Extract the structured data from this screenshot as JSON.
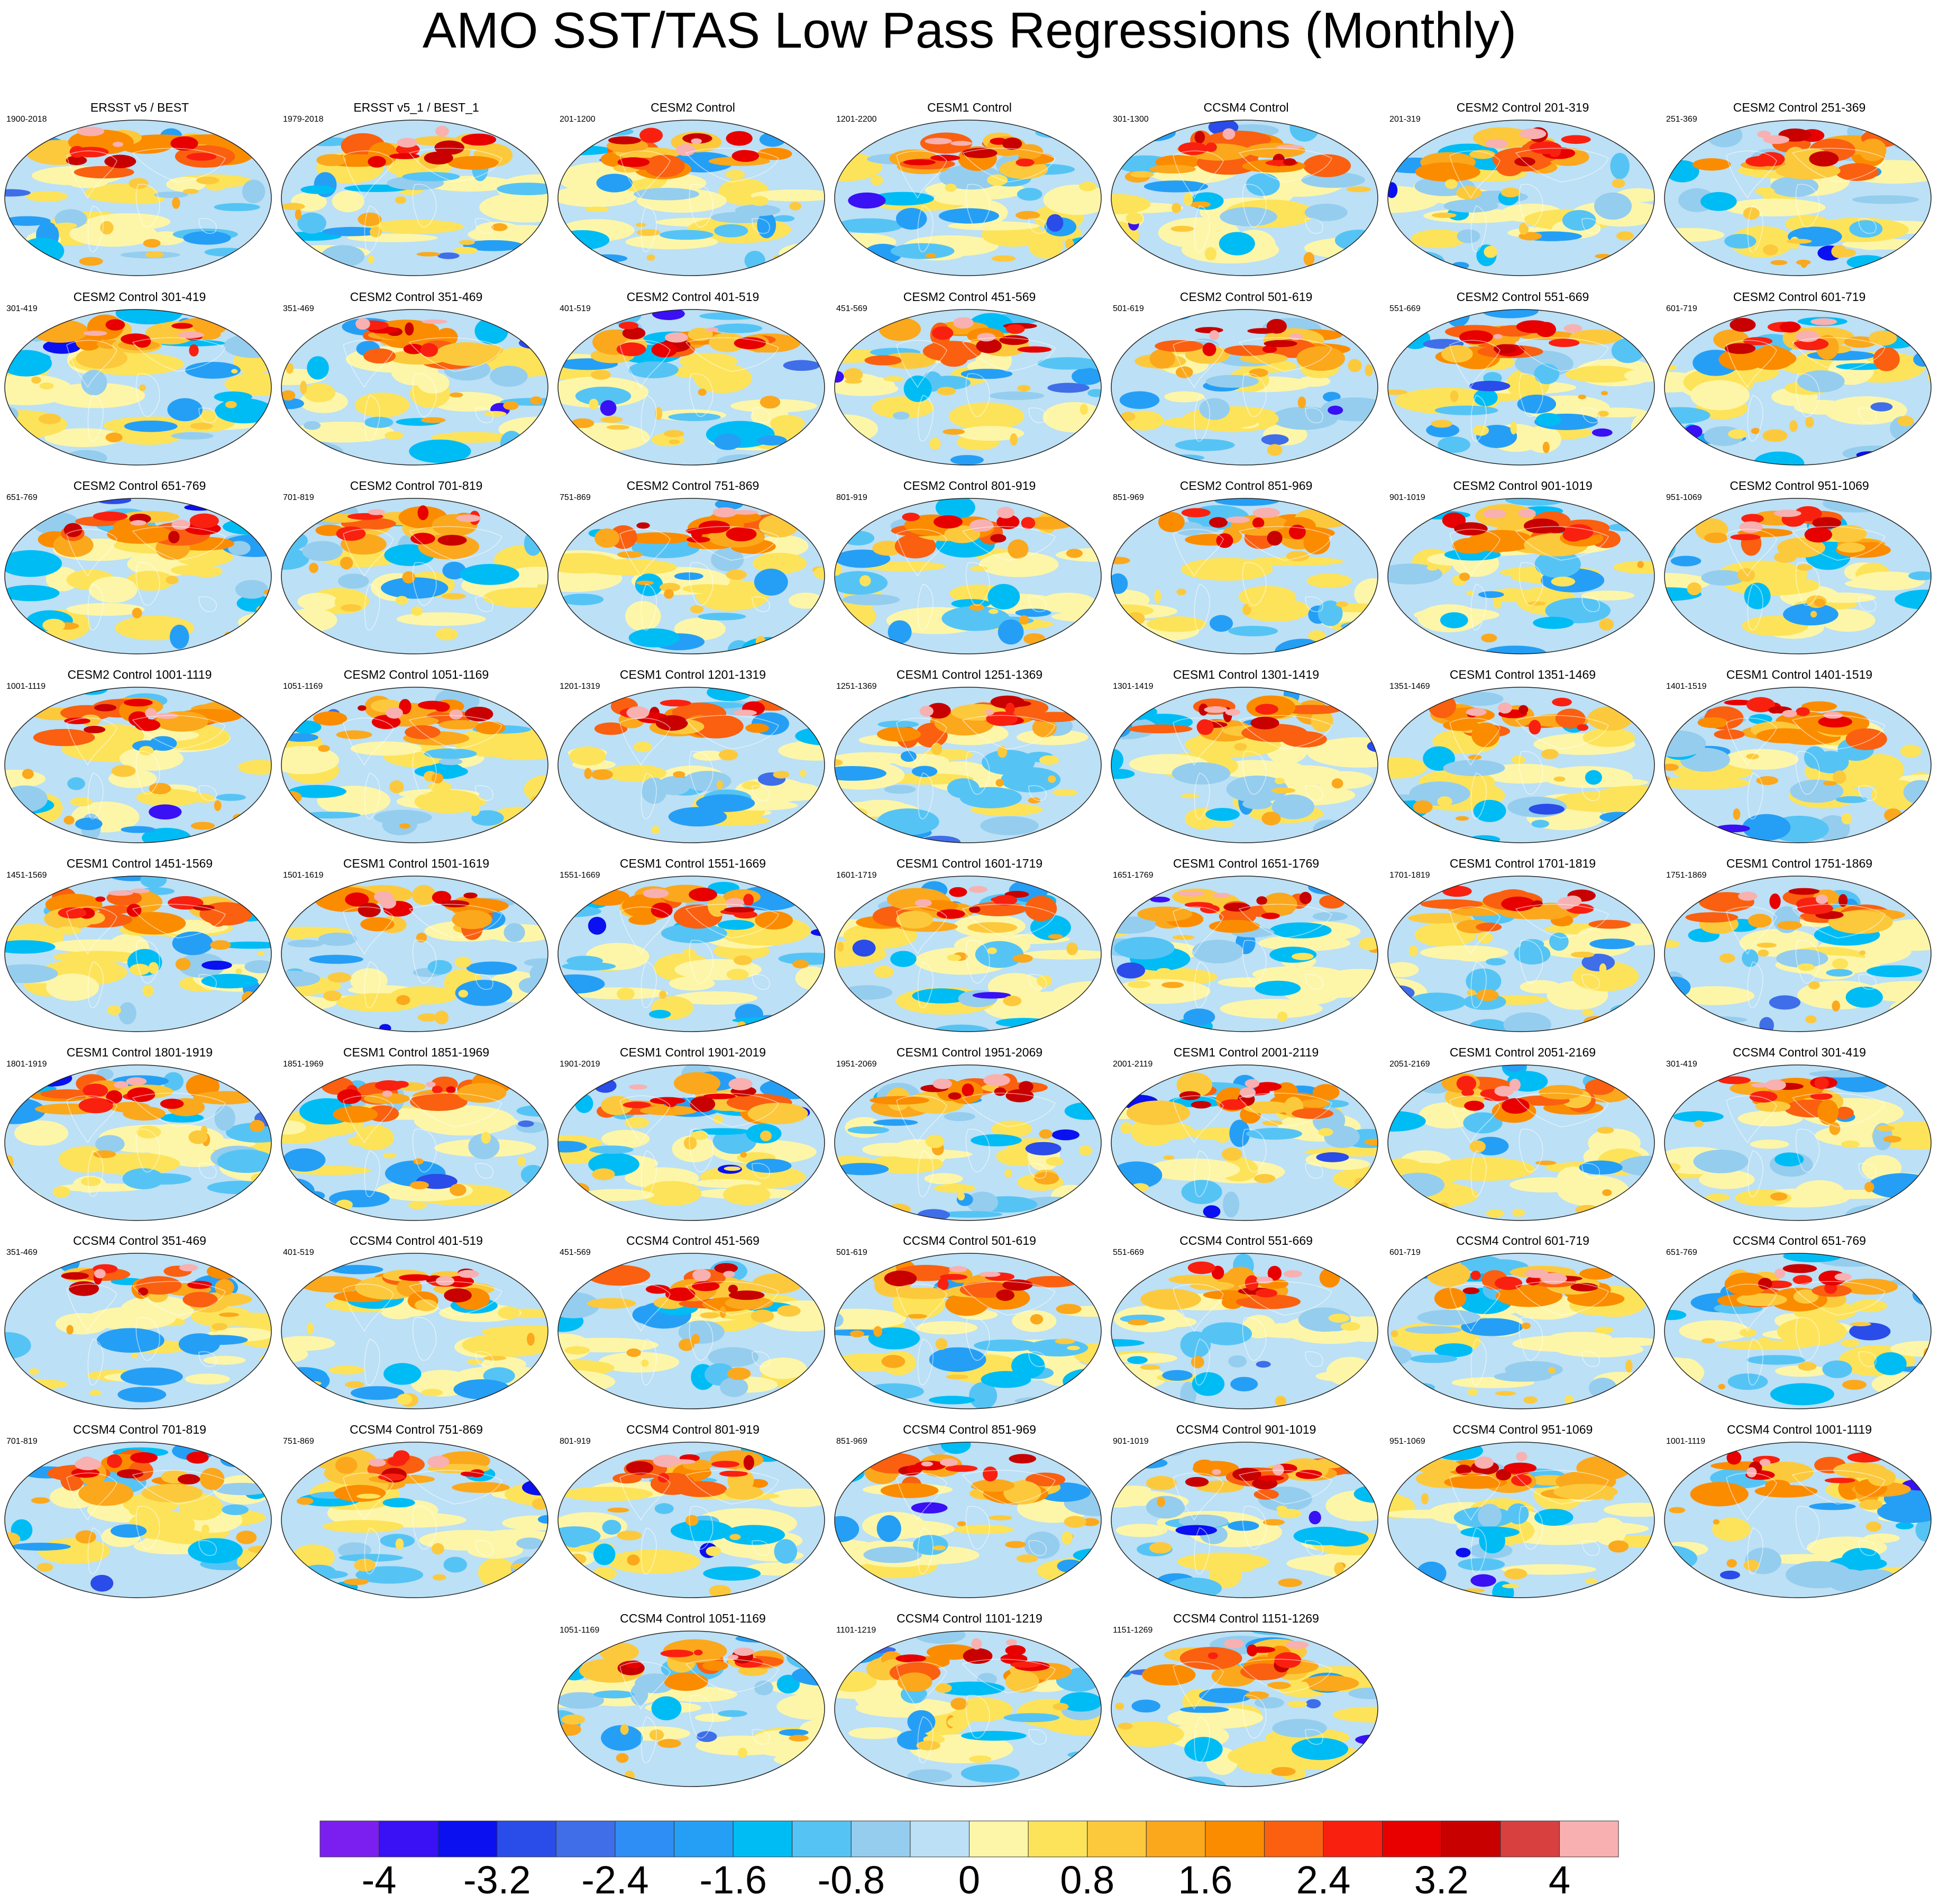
{
  "title": "AMO SST/TAS Low Pass Regressions (Monthly)",
  "panels": [
    {
      "title": "ERSST v5 / BEST",
      "years": "1900-2018"
    },
    {
      "title": "ERSST v5_1 / BEST_1",
      "years": "1979-2018"
    },
    {
      "title": "CESM2 Control",
      "years": "201-1200"
    },
    {
      "title": "CESM1 Control",
      "years": "1201-2200"
    },
    {
      "title": "CCSM4 Control",
      "years": "301-1300"
    },
    {
      "title": "CESM2 Control 201-319",
      "years": "201-319"
    },
    {
      "title": "CESM2 Control 251-369",
      "years": "251-369"
    },
    {
      "title": "CESM2 Control 301-419",
      "years": "301-419"
    },
    {
      "title": "CESM2 Control 351-469",
      "years": "351-469"
    },
    {
      "title": "CESM2 Control 401-519",
      "years": "401-519"
    },
    {
      "title": "CESM2 Control 451-569",
      "years": "451-569"
    },
    {
      "title": "CESM2 Control 501-619",
      "years": "501-619"
    },
    {
      "title": "CESM2 Control 551-669",
      "years": "551-669"
    },
    {
      "title": "CESM2 Control 601-719",
      "years": "601-719"
    },
    {
      "title": "CESM2 Control 651-769",
      "years": "651-769"
    },
    {
      "title": "CESM2 Control 701-819",
      "years": "701-819"
    },
    {
      "title": "CESM2 Control 751-869",
      "years": "751-869"
    },
    {
      "title": "CESM2 Control 801-919",
      "years": "801-919"
    },
    {
      "title": "CESM2 Control 851-969",
      "years": "851-969"
    },
    {
      "title": "CESM2 Control 901-1019",
      "years": "901-1019"
    },
    {
      "title": "CESM2 Control 951-1069",
      "years": "951-1069"
    },
    {
      "title": "CESM2 Control 1001-1119",
      "years": "1001-1119"
    },
    {
      "title": "CESM2 Control 1051-1169",
      "years": "1051-1169"
    },
    {
      "title": "CESM1 Control 1201-1319",
      "years": "1201-1319"
    },
    {
      "title": "CESM1 Control 1251-1369",
      "years": "1251-1369"
    },
    {
      "title": "CESM1 Control 1301-1419",
      "years": "1301-1419"
    },
    {
      "title": "CESM1 Control 1351-1469",
      "years": "1351-1469"
    },
    {
      "title": "CESM1 Control 1401-1519",
      "years": "1401-1519"
    },
    {
      "title": "CESM1 Control 1451-1569",
      "years": "1451-1569"
    },
    {
      "title": "CESM1 Control 1501-1619",
      "years": "1501-1619"
    },
    {
      "title": "CESM1 Control 1551-1669",
      "years": "1551-1669"
    },
    {
      "title": "CESM1 Control 1601-1719",
      "years": "1601-1719"
    },
    {
      "title": "CESM1 Control 1651-1769",
      "years": "1651-1769"
    },
    {
      "title": "CESM1 Control 1701-1819",
      "years": "1701-1819"
    },
    {
      "title": "CESM1 Control 1751-1869",
      "years": "1751-1869"
    },
    {
      "title": "CESM1 Control 1801-1919",
      "years": "1801-1919"
    },
    {
      "title": "CESM1 Control 1851-1969",
      "years": "1851-1969"
    },
    {
      "title": "CESM1 Control 1901-2019",
      "years": "1901-2019"
    },
    {
      "title": "CESM1 Control 1951-2069",
      "years": "1951-2069"
    },
    {
      "title": "CESM1 Control 2001-2119",
      "years": "2001-2119"
    },
    {
      "title": "CESM1 Control 2051-2169",
      "years": "2051-2169"
    },
    {
      "title": "CCSM4 Control 301-419",
      "years": "301-419"
    },
    {
      "title": "CCSM4 Control 351-469",
      "years": "351-469"
    },
    {
      "title": "CCSM4 Control 401-519",
      "years": "401-519"
    },
    {
      "title": "CCSM4 Control 451-569",
      "years": "451-569"
    },
    {
      "title": "CCSM4 Control 501-619",
      "years": "501-619"
    },
    {
      "title": "CCSM4 Control 551-669",
      "years": "551-669"
    },
    {
      "title": "CCSM4 Control 601-719",
      "years": "601-719"
    },
    {
      "title": "CCSM4 Control 651-769",
      "years": "651-769"
    },
    {
      "title": "CCSM4 Control 701-819",
      "years": "701-819"
    },
    {
      "title": "CCSM4 Control 751-869",
      "years": "751-869"
    },
    {
      "title": "CCSM4 Control 801-919",
      "years": "801-919"
    },
    {
      "title": "CCSM4 Control 851-969",
      "years": "851-969"
    },
    {
      "title": "CCSM4 Control 901-1019",
      "years": "901-1019"
    },
    {
      "title": "CCSM4 Control 951-1069",
      "years": "951-1069"
    },
    {
      "title": "CCSM4 Control 1001-1119",
      "years": "1001-1119"
    },
    {
      "title": "CCSM4 Control 1051-1169",
      "years": "1051-1169"
    },
    {
      "title": "CCSM4 Control 1101-1219",
      "years": "1101-1219"
    },
    {
      "title": "CCSM4 Control 1151-1269",
      "years": "1151-1269"
    }
  ],
  "colorbar": {
    "colors": [
      "#7b1ff0",
      "#3a10f5",
      "#0a10f0",
      "#2a4ce8",
      "#3f6ee8",
      "#2f8ef5",
      "#259ff5",
      "#00bcf5",
      "#55c4f5",
      "#95cdee",
      "#bce0f5",
      "#fdf6a8",
      "#fde35a",
      "#fcc93c",
      "#fba81c",
      "#fb8c00",
      "#fa6010",
      "#fa2010",
      "#e80000",
      "#c80000",
      "#d84040",
      "#f8b0b0"
    ],
    "tick_labels": [
      "-4",
      "-3.2",
      "-2.4",
      "-1.6",
      "-0.8",
      "0",
      "0.8",
      "1.6",
      "2.4",
      "3.2",
      "4"
    ]
  }
}
